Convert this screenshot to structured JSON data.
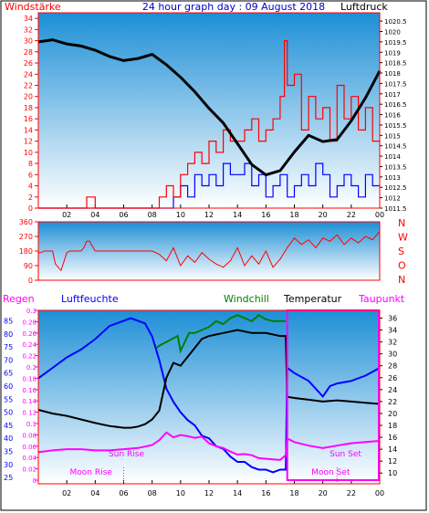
{
  "chart_data": [
    {
      "type": "line",
      "title": "24 hour graph day : 09 August 2018",
      "left_label": "Windstärke",
      "right_label": "Luftdruck",
      "x_ticks": [
        "02",
        "04",
        "06",
        "08",
        "10",
        "12",
        "14",
        "16",
        "18",
        "20",
        "22",
        "00"
      ],
      "y_left_ticks": [
        "0",
        "2",
        "4",
        "6",
        "8",
        "10",
        "12",
        "14",
        "16",
        "18",
        "20",
        "22",
        "24",
        "26",
        "28",
        "30",
        "32",
        "34"
      ],
      "y_right_ticks": [
        "1011.5",
        "1012",
        "1012.5",
        "1013",
        "1013.5",
        "1014",
        "1014.5",
        "1015",
        "1015.5",
        "1016",
        "1016.5",
        "1017",
        "1017.5",
        "1018",
        "1018.5",
        "1019",
        "1019.5",
        "1020",
        "1020.5"
      ],
      "ylim_left": [
        0,
        35
      ],
      "ylim_right": [
        1011.5,
        1020.9
      ],
      "colors": {
        "pressure": "#000000",
        "gust": "#ff0000",
        "wind": "#0000ff",
        "frame": "#ff0000"
      },
      "pressure": {
        "x": [
          0,
          1,
          2,
          3,
          4,
          5,
          6,
          7,
          8,
          9,
          10,
          11,
          12,
          13,
          14,
          15,
          16,
          17,
          18,
          19,
          20,
          21,
          22,
          23,
          24
        ],
        "values": [
          1019.5,
          1019.6,
          1019.4,
          1019.3,
          1019.1,
          1018.8,
          1018.6,
          1018.7,
          1018.9,
          1018.4,
          1017.8,
          1017.1,
          1016.3,
          1015.6,
          1014.6,
          1013.6,
          1013.1,
          1013.3,
          1014.2,
          1015.0,
          1014.7,
          1014.8,
          1015.7,
          1016.8,
          1018.1
        ]
      },
      "gust": {
        "x": [
          0,
          1,
          2,
          3,
          3.4,
          3.6,
          3.8,
          4,
          5,
          6,
          7,
          8,
          8.5,
          8.8,
          9,
          9.5,
          10,
          10.5,
          11,
          11.5,
          12,
          12.5,
          13,
          13.5,
          14,
          14.5,
          15,
          15.5,
          16,
          16.5,
          17,
          17.3,
          17.5,
          18,
          18.5,
          19,
          19.5,
          20,
          20.5,
          21,
          21.5,
          22,
          22.5,
          23,
          23.5,
          24
        ],
        "values": [
          0,
          0,
          0,
          0,
          2,
          2,
          2,
          0,
          0,
          0,
          0,
          0,
          2,
          2,
          4,
          2,
          6,
          8,
          10,
          8,
          12,
          10,
          14,
          12,
          12,
          14,
          16,
          12,
          14,
          16,
          20,
          30,
          22,
          24,
          14,
          20,
          16,
          18,
          12,
          22,
          16,
          20,
          14,
          18,
          12,
          12
        ]
      },
      "wind": {
        "x": [
          0,
          3,
          4,
          8,
          9,
          9.5,
          10,
          10.5,
          11,
          11.5,
          12,
          12.5,
          13,
          13.5,
          14,
          14.5,
          15,
          15.5,
          16,
          16.5,
          17,
          17.5,
          18,
          18.5,
          19,
          19.5,
          20,
          20.5,
          21,
          21.5,
          22,
          22.5,
          23,
          23.5,
          24
        ],
        "values": [
          0,
          0,
          0,
          0,
          0,
          2,
          4,
          2,
          6,
          4,
          6,
          4,
          8,
          6,
          6,
          8,
          4,
          6,
          2,
          4,
          6,
          2,
          4,
          6,
          4,
          8,
          6,
          2,
          4,
          6,
          4,
          2,
          6,
          4,
          4
        ]
      }
    },
    {
      "type": "scatter",
      "y_left_ticks": [
        "0",
        "90",
        "180",
        "270",
        "360"
      ],
      "y_right_ticks": [
        "N",
        "W",
        "S",
        "O",
        "N"
      ],
      "ylim": [
        0,
        360
      ],
      "colors": {
        "direction": "#ff0000"
      },
      "direction": {
        "x": [
          0,
          0.2,
          0.4,
          1,
          1.2,
          1.6,
          2,
          2.2,
          3,
          3.2,
          3.4,
          3.6,
          4,
          5,
          6,
          7,
          8,
          8.5,
          9,
          9.5,
          10,
          10.5,
          11,
          11.5,
          12,
          12.5,
          13,
          13.5,
          14,
          14.5,
          15,
          15.5,
          16,
          16.5,
          17,
          17.5,
          18,
          18.5,
          19,
          19.5,
          20,
          20.5,
          21,
          21.5,
          22,
          22.5,
          23,
          23.5,
          24
        ],
        "values": [
          170,
          170,
          180,
          180,
          100,
          60,
          170,
          180,
          180,
          200,
          240,
          240,
          180,
          180,
          180,
          180,
          180,
          160,
          120,
          200,
          90,
          150,
          110,
          170,
          130,
          100,
          80,
          120,
          200,
          90,
          150,
          100,
          180,
          80,
          130,
          200,
          260,
          220,
          250,
          200,
          260,
          240,
          280,
          220,
          260,
          230,
          270,
          250,
          300
        ]
      }
    },
    {
      "type": "line",
      "labels": {
        "rain": "Regen",
        "humidity": "Luftfeuchte",
        "windchill": "Windchill",
        "temperature": "Temperatur",
        "dewpoint": "Taupunkt",
        "sun_rise": "Sun Rise",
        "sun_set": "Sun Set",
        "moon_rise": "Moon Rise",
        "moon_set": "Moon Set"
      },
      "y_rain_ticks": [
        "0",
        "0.02",
        "0.04",
        "0.06",
        "0.08",
        "0.1",
        "0.12",
        "0.14",
        "0.16",
        "0.18",
        "0.2",
        "0.22",
        "0.24",
        "0.26",
        "0.28",
        "0.3"
      ],
      "y_humidity_ticks": [
        "25",
        "30",
        "35",
        "40",
        "45",
        "50",
        "55",
        "60",
        "65",
        "70",
        "75",
        "80",
        "85"
      ],
      "y_temp_ticks": [
        "10",
        "12",
        "14",
        "16",
        "18",
        "20",
        "22",
        "24",
        "26",
        "28",
        "30",
        "32",
        "34",
        "36"
      ],
      "x_ticks": [
        "02",
        "04",
        "06",
        "08",
        "10",
        "12",
        "14",
        "16",
        "18",
        "20",
        "22",
        "00"
      ],
      "ylim_temp": [
        8.2,
        37.3
      ],
      "ylim_humidity": [
        22.6,
        89.0
      ],
      "colors": {
        "temperature": "#000000",
        "humidity": "#0000ff",
        "windchill": "#008000",
        "dewpoint": "#ff00ff",
        "rain_box": "#ff00ff",
        "rain": "#ff00ff",
        "humidity_label": "#0000ff",
        "windchill_label": "#008000"
      },
      "sun_rise_hour": 6.1,
      "sun_set_hour": 20.8,
      "moon_rise_hour": 6.0,
      "moon_set_hour": 21.0,
      "rain_box": {
        "x_start": 17.5,
        "x_end": 24,
        "value": 0.3
      },
      "temperature": {
        "x": [
          0,
          1,
          2,
          3,
          4,
          5,
          6,
          6.5,
          7,
          7.5,
          8,
          8.5,
          9,
          9.5,
          10,
          10.5,
          11,
          11.5,
          12,
          13,
          14,
          15,
          16,
          17,
          17.4,
          17.5,
          18,
          19,
          20,
          21,
          22,
          23,
          24
        ],
        "values": [
          20.6,
          20.0,
          19.6,
          19.0,
          18.4,
          17.9,
          17.6,
          17.6,
          17.8,
          18.2,
          19.0,
          20.5,
          26.0,
          28.5,
          28.0,
          29.5,
          31.0,
          32.5,
          33.0,
          33.5,
          34.0,
          33.5,
          33.5,
          33.0,
          33.0,
          22.8,
          22.6,
          22.3,
          22.0,
          22.2,
          22.0,
          21.8,
          21.6
        ]
      },
      "windchill": {
        "x": [
          8.3,
          8.6,
          9,
          9.4,
          9.8,
          10,
          10.3,
          10.6,
          11,
          11.5,
          12,
          12.5,
          13,
          13.5,
          14,
          14.5,
          15,
          15.5,
          16,
          16.5,
          17,
          17.4
        ],
        "values": [
          31.0,
          31.5,
          32.0,
          32.5,
          33.0,
          30.5,
          32.0,
          33.5,
          33.5,
          34.0,
          34.5,
          35.5,
          35.0,
          36.0,
          36.5,
          36.0,
          35.5,
          36.5,
          35.8,
          35.5,
          35.5,
          35.5
        ]
      },
      "humidity": {
        "x": [
          0,
          0.5,
          1,
          2,
          3,
          4,
          5,
          6,
          6.5,
          7,
          7.5,
          8,
          8.5,
          9,
          9.5,
          10,
          10.5,
          11,
          11.5,
          12,
          12.5,
          13,
          13.5,
          14,
          14.5,
          15,
          15.5,
          16,
          16.5,
          17,
          17.4,
          17.5,
          18,
          19,
          19.5,
          20,
          20.5,
          21,
          22,
          23,
          24
        ],
        "values": [
          63,
          65,
          67,
          71,
          74,
          78,
          83,
          85,
          86,
          85,
          84,
          79,
          70,
          59,
          54,
          50,
          47,
          45,
          41,
          40,
          37,
          36,
          33,
          31,
          31,
          29,
          28,
          28,
          27,
          28,
          28,
          67,
          65,
          62,
          59,
          56,
          60,
          61,
          62,
          64,
          67
        ]
      },
      "dewpoint": {
        "x": [
          0,
          1,
          2,
          3,
          4,
          5,
          6,
          7,
          8,
          8.5,
          9,
          9.5,
          10,
          10.5,
          11,
          11.5,
          12,
          12.5,
          13,
          13.5,
          14,
          14.5,
          15,
          15.5,
          16,
          16.5,
          17,
          17.4,
          17.5,
          18,
          19,
          20,
          21,
          22,
          23,
          24
        ],
        "values": [
          13.5,
          13.8,
          14.0,
          14.0,
          13.8,
          13.8,
          14.0,
          14.2,
          14.7,
          15.5,
          16.8,
          16.0,
          16.4,
          16.2,
          15.9,
          16.1,
          15.0,
          14.5,
          14.2,
          13.6,
          13.1,
          13.2,
          13.0,
          12.5,
          12.4,
          12.3,
          12.2,
          13.0,
          15.8,
          15.2,
          14.6,
          14.2,
          14.6,
          15.0,
          15.2,
          15.4
        ]
      }
    }
  ]
}
